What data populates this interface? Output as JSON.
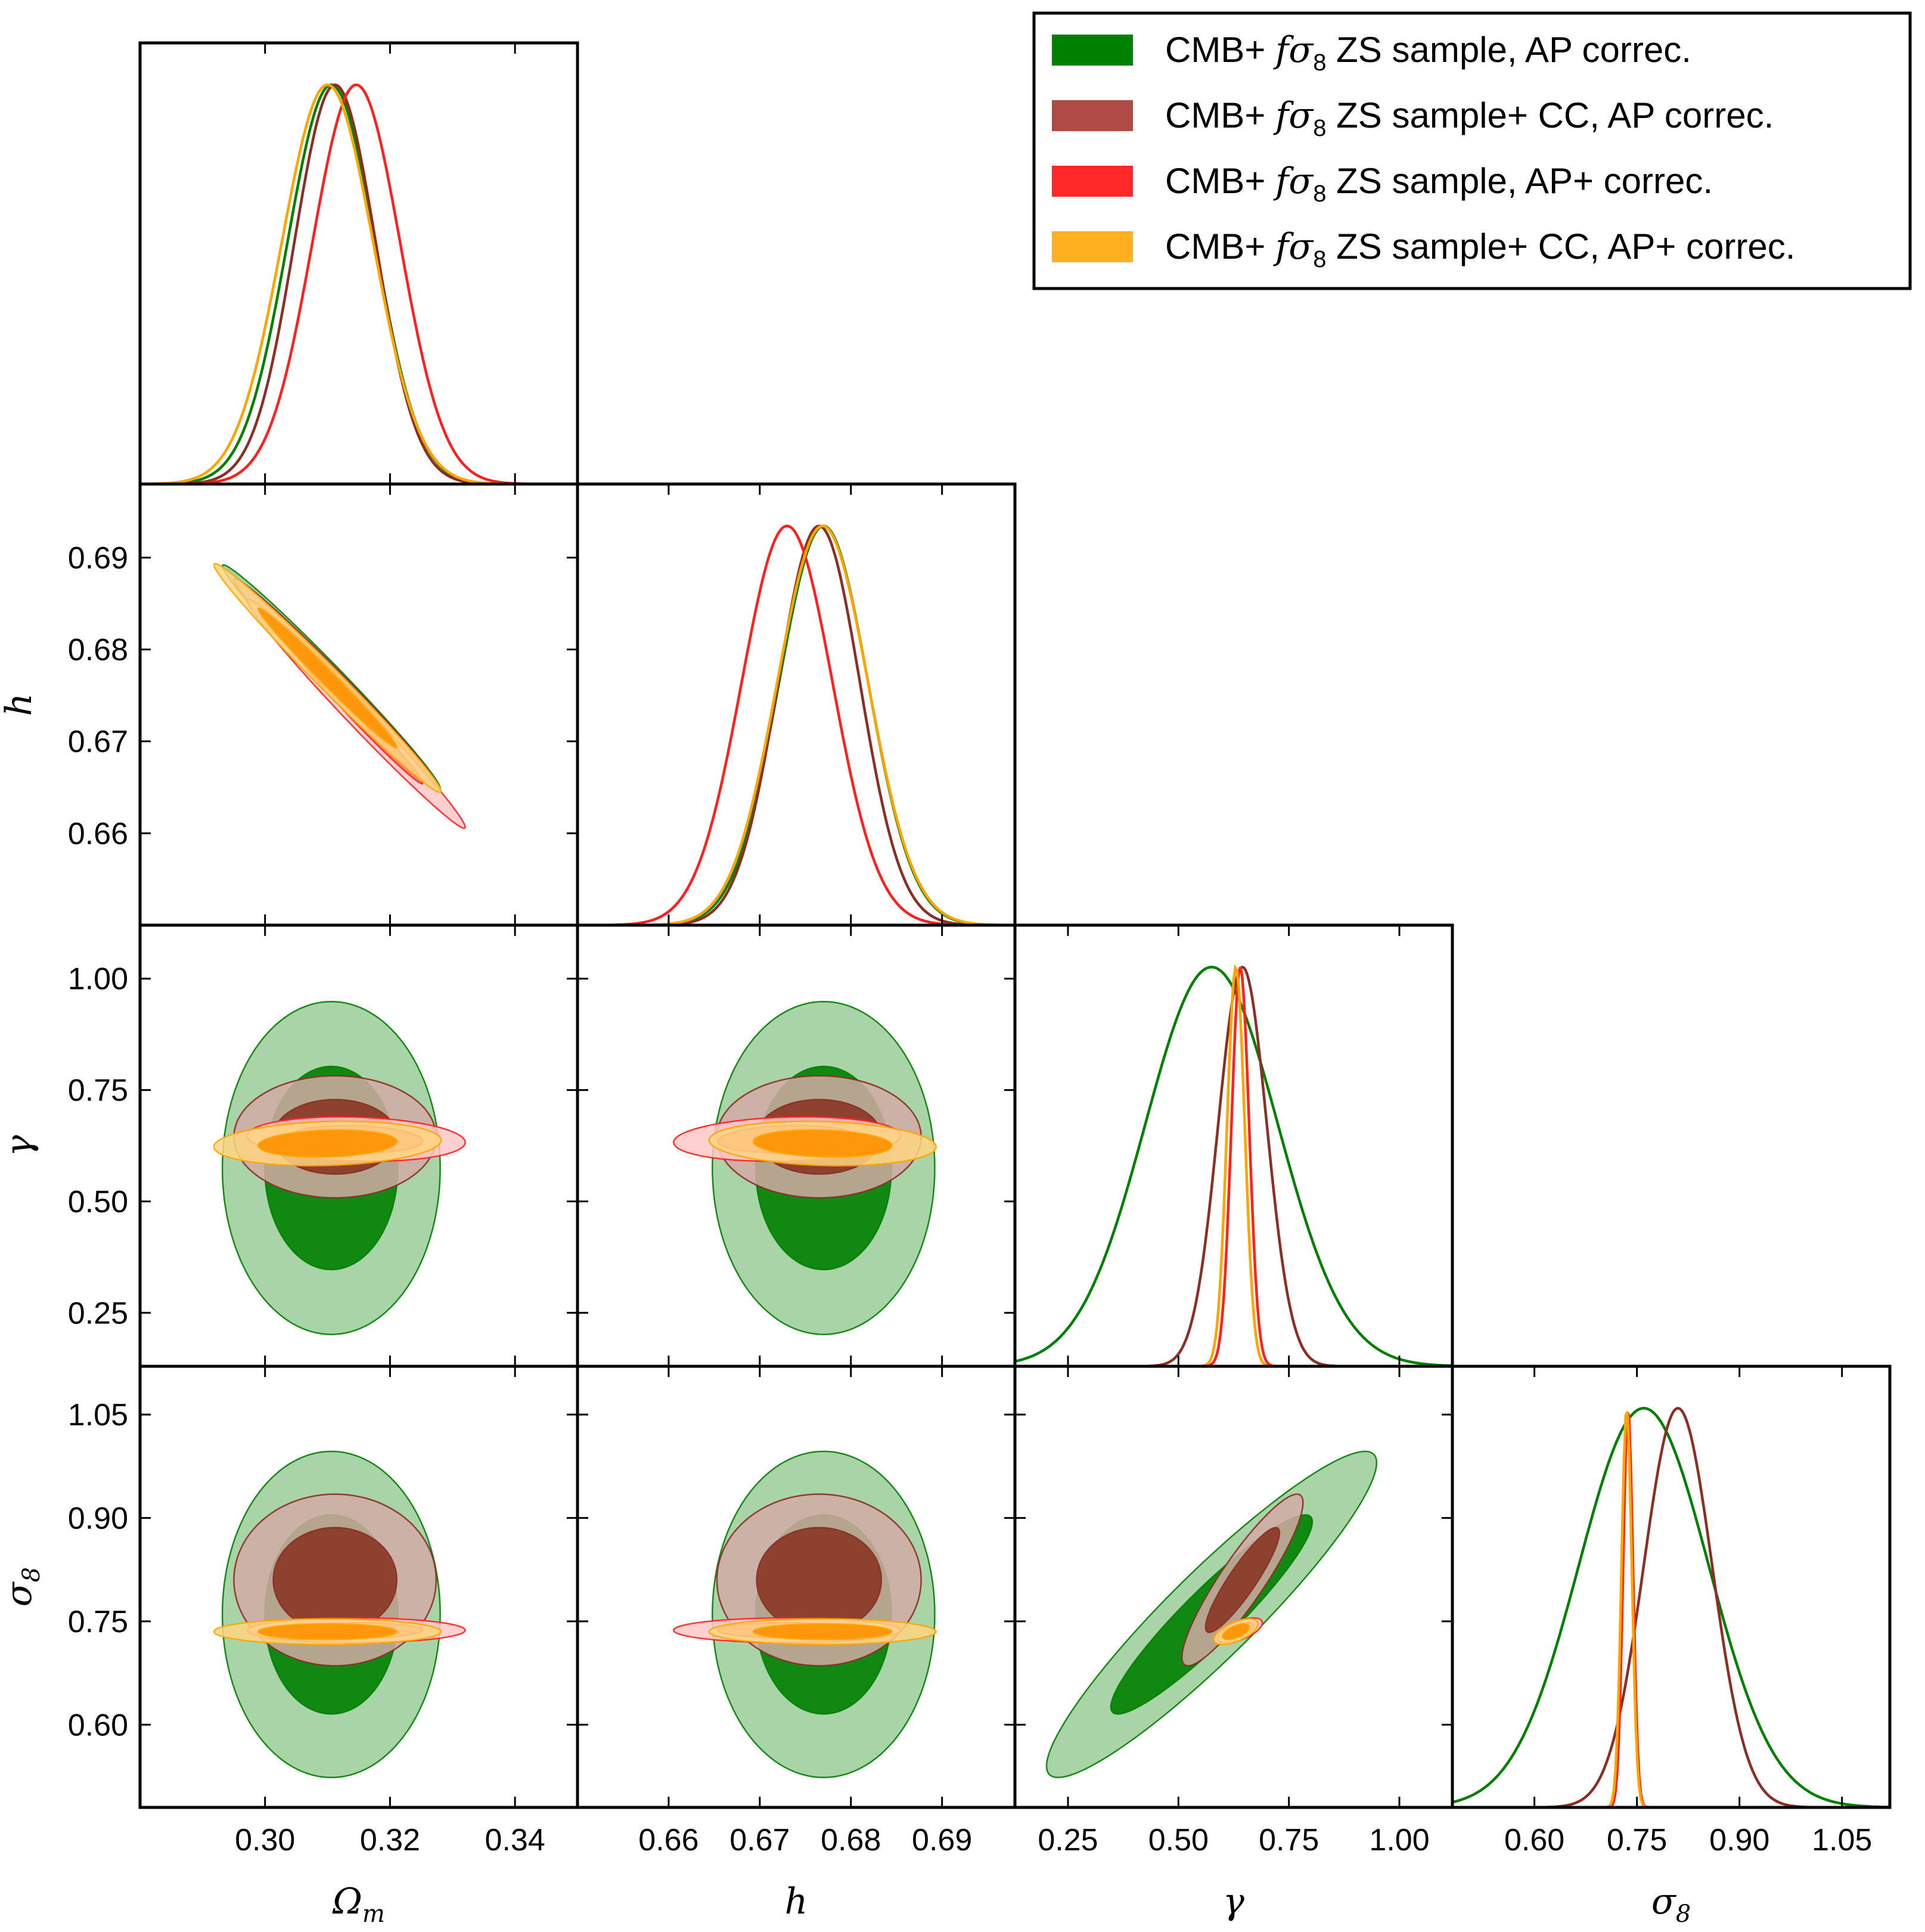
{
  "chart_data": {
    "type": "triangle-plot",
    "description_free": true,
    "parameters": [
      {
        "key": "Om",
        "label": "Ω",
        "label_sub": "m",
        "range": [
          0.28,
          0.35
        ],
        "ticks": [
          0.3,
          0.32,
          0.34
        ],
        "tick_labels": [
          "0.30",
          "0.32",
          "0.34"
        ]
      },
      {
        "key": "h",
        "label": "h",
        "label_sub": "",
        "range": [
          0.65,
          0.698
        ],
        "ticks": [
          0.66,
          0.67,
          0.68,
          0.69
        ],
        "tick_labels": [
          "0.66",
          "0.67",
          "0.68",
          "0.69"
        ]
      },
      {
        "key": "gamma",
        "label": "γ",
        "label_sub": "",
        "range": [
          0.13,
          1.12
        ],
        "ticks": [
          0.25,
          0.5,
          0.75,
          1.0
        ],
        "tick_labels": [
          "0.25",
          "0.50",
          "0.75",
          "1.00"
        ]
      },
      {
        "key": "s8",
        "label": "σ",
        "label_sub": "8",
        "range": [
          0.48,
          1.12
        ],
        "ticks": [
          0.6,
          0.75,
          0.9,
          1.05
        ],
        "tick_labels": [
          "0.60",
          "0.75",
          "0.90",
          "1.05"
        ]
      }
    ],
    "series": [
      {
        "name": "CMB+ fσ8 ZS sample, AP correc.",
        "color": "#008000",
        "fill1": "#008000",
        "fill2": "#99cc99",
        "mean": [
          0.3106,
          0.677,
          0.575,
          0.76
        ],
        "sigma": [
          0.007,
          0.0049,
          0.15,
          0.095
        ],
        "corr": {
          "0-1": -0.99,
          "0-2": 0.0,
          "0-3": 0.0,
          "1-2": 0.0,
          "1-3": 0.0,
          "2-3": 0.93
        }
      },
      {
        "name": "CMB+ fσ8 ZS sample+ CC, AP correc.",
        "color": "#8b2e23",
        "fill1": "#8b3626",
        "fill2": "#d2aaa6",
        "mean": [
          0.3112,
          0.6765,
          0.645,
          0.81
        ],
        "sigma": [
          0.0065,
          0.0045,
          0.055,
          0.05
        ],
        "corr": {
          "0-1": -0.99,
          "0-2": 0.0,
          "0-3": 0.0,
          "1-2": 0.0,
          "1-3": 0.0,
          "2-3": 0.9
        }
      },
      {
        "name": "CMB+ fσ8 ZS sample, AP+ correc.",
        "color": "#ff2020",
        "fill1": "#ff7070",
        "fill2": "#ffc8c8",
        "mean": [
          0.3146,
          0.673,
          0.64,
          0.737
        ],
        "sigma": [
          0.007,
          0.005,
          0.02,
          0.0072
        ],
        "corr": {
          "0-1": -0.99,
          "0-2": -0.15,
          "0-3": 0.0,
          "1-2": 0.15,
          "1-3": 0.0,
          "2-3": 0.6
        }
      },
      {
        "name": "CMB+ fσ8 ZS sample+ CC, AP+ correc.",
        "color": "#ffa500",
        "fill1": "#ff9000",
        "fill2": "#ffd580",
        "mean": [
          0.31,
          0.6769,
          0.63,
          0.735
        ],
        "sigma": [
          0.0073,
          0.005,
          0.02,
          0.0075
        ],
        "corr": {
          "0-1": -0.99,
          "0-2": 0.15,
          "0-3": 0.0,
          "1-2": -0.15,
          "1-3": 0.0,
          "2-3": 0.6
        }
      }
    ],
    "legend_position": "top-right",
    "grid": false
  },
  "legend": {
    "items": [
      {
        "prefix": "CMB+ ",
        "math": "fσ",
        "sub": "8",
        "suffix": " ZS sample, AP correc.",
        "color": "#008000"
      },
      {
        "prefix": "CMB+ ",
        "math": "fσ",
        "sub": "8",
        "suffix": " ZS sample+ CC, AP correc.",
        "color": "#b04a44"
      },
      {
        "prefix": "CMB+ ",
        "math": "fσ",
        "sub": "8",
        "suffix": " ZS sample, AP+ correc.",
        "color": "#ff2828"
      },
      {
        "prefix": "CMB+ ",
        "math": "fσ",
        "sub": "8",
        "suffix": " ZS sample+ CC, AP+ correc.",
        "color": "#ffb020"
      }
    ]
  }
}
